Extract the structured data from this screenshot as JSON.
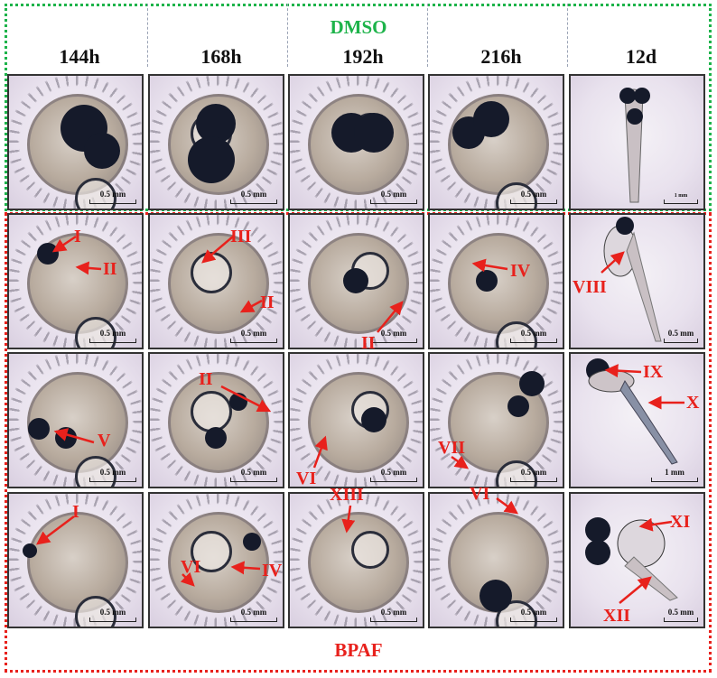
{
  "figure": {
    "top_group": {
      "label": "DMSO",
      "color": "#1db34a"
    },
    "bottom_group": {
      "label": "BPAF",
      "color": "#e8211c"
    },
    "columns": [
      "144h",
      "168h",
      "192h",
      "216h",
      "12d"
    ],
    "rows": [
      {
        "group": "DMSO",
        "cells": [
          {
            "scale": "0.5 mm",
            "annotations": []
          },
          {
            "scale": "0.5 mm",
            "annotations": []
          },
          {
            "scale": "0.5 mm",
            "annotations": []
          },
          {
            "scale": "0.5 mm",
            "annotations": []
          },
          {
            "scale": "1 mm",
            "annotations": []
          }
        ]
      },
      {
        "group": "BPAF",
        "cells": [
          {
            "scale": "0.5 mm",
            "annotations": [
              "I",
              "II"
            ]
          },
          {
            "scale": "0.5 mm",
            "annotations": [
              "III",
              "II"
            ]
          },
          {
            "scale": "0.5 mm",
            "annotations": [
              "II"
            ]
          },
          {
            "scale": "0.5 mm",
            "annotations": [
              "IV"
            ]
          },
          {
            "scale": "0.5 mm",
            "annotations": [
              "VIII"
            ]
          }
        ]
      },
      {
        "group": "BPAF",
        "cells": [
          {
            "scale": "0.5 mm",
            "annotations": [
              "V"
            ]
          },
          {
            "scale": "0.5 mm",
            "annotations": [
              "II"
            ]
          },
          {
            "scale": "0.5 mm",
            "annotations": [
              "VI"
            ]
          },
          {
            "scale": "0.5 mm",
            "annotations": [
              "VII"
            ]
          },
          {
            "scale": "1 mm",
            "annotations": [
              "IX",
              "X"
            ]
          }
        ]
      },
      {
        "group": "BPAF",
        "cells": [
          {
            "scale": "0.5 mm",
            "annotations": [
              "I"
            ]
          },
          {
            "scale": "0.5 mm",
            "annotations": [
              "VI",
              "IV"
            ]
          },
          {
            "scale": "0.5 mm",
            "annotations": [
              "XIII"
            ]
          },
          {
            "scale": "0.5 mm",
            "annotations": [
              "VI"
            ]
          },
          {
            "scale": "0.5 mm",
            "annotations": [
              "XI",
              "XII"
            ]
          }
        ]
      }
    ]
  }
}
